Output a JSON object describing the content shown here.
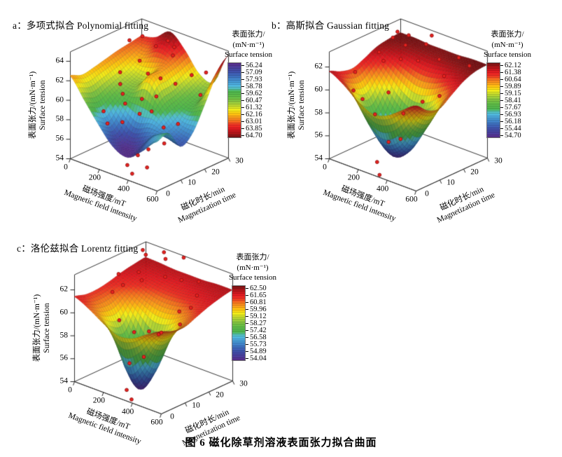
{
  "figure": {
    "caption": "图 6  磁化除草剂溶液表面张力拟合曲面"
  },
  "axes_common": {
    "x_label_cn": "磁场强度/mT",
    "x_label_en": "Magnetic field intensity",
    "y_label_cn": "磁化时长/min",
    "y_label_en": "Magnetization time",
    "z_label_cn": "表面张力/(mN·m⁻¹)",
    "z_label_en": "Surface tension",
    "x_ticks": [
      0,
      200,
      400,
      600
    ],
    "y_ticks": [
      0,
      10,
      20,
      30
    ]
  },
  "colorbar_title_lines": [
    "表面张力/",
    "(mN·m⁻¹)",
    "Surface tension"
  ],
  "scatter_color": "#e8231f",
  "scatter_edge": "#8c1012",
  "frame_color": "#333333",
  "colormap": [
    {
      "f": 0.0,
      "c": "#5b2c8c"
    },
    {
      "f": 0.06,
      "c": "#4a3f9c"
    },
    {
      "f": 0.12,
      "c": "#3f51ab"
    },
    {
      "f": 0.18,
      "c": "#3e6fbe"
    },
    {
      "f": 0.24,
      "c": "#4391cf"
    },
    {
      "f": 0.3,
      "c": "#4fb4e0"
    },
    {
      "f": 0.34,
      "c": "#53c0c2"
    },
    {
      "f": 0.38,
      "c": "#4cb64e"
    },
    {
      "f": 0.46,
      "c": "#63bc46"
    },
    {
      "f": 0.52,
      "c": "#8cc63f"
    },
    {
      "f": 0.58,
      "c": "#c3da2e"
    },
    {
      "f": 0.63,
      "c": "#f3ec19"
    },
    {
      "f": 0.68,
      "c": "#fdc70f"
    },
    {
      "f": 0.73,
      "c": "#fa9c1b"
    },
    {
      "f": 0.78,
      "c": "#f4711f"
    },
    {
      "f": 0.83,
      "c": "#ee3124"
    },
    {
      "f": 0.88,
      "c": "#e31b22"
    },
    {
      "f": 0.93,
      "c": "#bb141a"
    },
    {
      "f": 0.97,
      "c": "#951517"
    },
    {
      "f": 1.0,
      "c": "#731012"
    }
  ],
  "panels": [
    {
      "id": "a",
      "title": "a：多项式拟合 Polynomial fitting",
      "z_ticks": [
        54,
        56,
        58,
        60,
        62,
        64
      ],
      "z_axis_min": 54,
      "z_axis_max": 65,
      "colorbar_labels": [
        "56.24",
        "57.09",
        "57.93",
        "58.78",
        "59.62",
        "60.47",
        "61.32",
        "62.16",
        "63.01",
        "63.85",
        "64.70"
      ],
      "colorbar_low_at_top": true
    },
    {
      "id": "b",
      "title": "b：高斯拟合 Gaussian fitting",
      "z_ticks": [
        54,
        56,
        58,
        60,
        62
      ],
      "z_axis_min": 54,
      "z_axis_max": 63.35,
      "colorbar_labels": [
        "62.12",
        "61.38",
        "60.64",
        "59.89",
        "59.15",
        "58.41",
        "57.67",
        "56.93",
        "56.18",
        "55.44",
        "54.70"
      ],
      "colorbar_low_at_top": false
    },
    {
      "id": "c",
      "title": "c：洛伦兹拟合 Lorentz fitting",
      "z_ticks": [
        54,
        56,
        58,
        60,
        62
      ],
      "z_axis_min": 54,
      "z_axis_max": 63.35,
      "colorbar_labels": [
        "62.50",
        "61.65",
        "60.81",
        "59.96",
        "59.12",
        "58.27",
        "57.42",
        "56.58",
        "55.73",
        "54.89",
        "54.04"
      ],
      "colorbar_low_at_top": false
    }
  ],
  "chart_data": [
    {
      "type": "surface3d",
      "name": "Polynomial fitting",
      "grid_order": "rows = y (magnetization time), cols = x (magnetic field)",
      "x_values": [
        0,
        100,
        200,
        300,
        400,
        500,
        600
      ],
      "y_values": [
        0,
        5,
        10,
        15,
        20,
        25,
        30
      ],
      "z_grid": [
        [
          62.5,
          60.5,
          58.5,
          56.8,
          56.3,
          57.5,
          59.0
        ],
        [
          62.0,
          60.0,
          57.8,
          56.5,
          56.9,
          58.5,
          59.3
        ],
        [
          62.2,
          60.5,
          59.2,
          58.2,
          58.6,
          58.0,
          57.4
        ],
        [
          62.5,
          61.0,
          60.6,
          62.0,
          60.0,
          58.5,
          58.2
        ],
        [
          62.8,
          61.5,
          61.2,
          62.4,
          60.4,
          59.6,
          60.5
        ],
        [
          63.0,
          62.5,
          63.4,
          62.8,
          61.0,
          60.2,
          63.0
        ],
        [
          63.2,
          63.6,
          64.7,
          63.4,
          61.5,
          61.2,
          64.5
        ]
      ],
      "clim": [
        56.24,
        64.7
      ],
      "scatter_points": [
        [
          0,
          25,
          63.3
        ],
        [
          40,
          28,
          63.6
        ],
        [
          120,
          22,
          62.2
        ],
        [
          150,
          27,
          63.3
        ],
        [
          200,
          29,
          63.9
        ],
        [
          210,
          20,
          61.6
        ],
        [
          260,
          28,
          63.7
        ],
        [
          300,
          25,
          63.4
        ],
        [
          330,
          18,
          62.0
        ],
        [
          100,
          15,
          61.7
        ],
        [
          150,
          12,
          61.1
        ],
        [
          200,
          10,
          60.6
        ],
        [
          250,
          8,
          60.1
        ],
        [
          300,
          12,
          60.4
        ],
        [
          350,
          15,
          60.6
        ],
        [
          400,
          20,
          61.6
        ],
        [
          430,
          25,
          62.1
        ],
        [
          480,
          28,
          62.3
        ],
        [
          150,
          5,
          59.1
        ],
        [
          210,
          3,
          58.4
        ],
        [
          280,
          5,
          58.7
        ],
        [
          350,
          8,
          59.6
        ],
        [
          400,
          10,
          59.9
        ],
        [
          450,
          12,
          58.3
        ],
        [
          500,
          15,
          58.6
        ],
        [
          540,
          22,
          61.0
        ],
        [
          420,
          3,
          56.3
        ],
        [
          460,
          5,
          56.9
        ],
        [
          380,
          1,
          55.3
        ],
        [
          430,
          0,
          54.8
        ],
        [
          500,
          2,
          55.6
        ],
        [
          520,
          8,
          57.5
        ]
      ]
    },
    {
      "type": "surface3d",
      "name": "Gaussian fitting",
      "grid_order": "rows = y (magnetization time), cols = x (magnetic field)",
      "x_values": [
        0,
        100,
        200,
        300,
        400,
        500,
        600
      ],
      "y_values": [
        0,
        5,
        10,
        15,
        20,
        25,
        30
      ],
      "z_grid": [
        [
          61.6,
          60.9,
          59.9,
          59.3,
          59.6,
          60.5,
          61.4
        ],
        [
          61.1,
          59.5,
          57.3,
          56.0,
          56.6,
          58.6,
          60.5
        ],
        [
          60.9,
          58.9,
          56.4,
          54.8,
          55.6,
          57.9,
          60.2
        ],
        [
          61.3,
          60.0,
          58.3,
          57.3,
          57.8,
          59.3,
          60.9
        ],
        [
          61.8,
          61.3,
          60.7,
          60.3,
          60.5,
          61.1,
          61.6
        ],
        [
          62.0,
          61.9,
          61.8,
          61.7,
          61.8,
          61.9,
          62.0
        ],
        [
          62.1,
          62.1,
          62.0,
          62.0,
          62.0,
          62.1,
          62.1
        ]
      ],
      "clim": [
        54.7,
        62.12
      ],
      "scatter_points": [
        [
          30,
          27,
          62.6
        ],
        [
          80,
          22,
          62.8
        ],
        [
          140,
          25,
          63.0
        ],
        [
          200,
          20,
          62.9
        ],
        [
          250,
          28,
          63.2
        ],
        [
          310,
          22,
          63.3
        ],
        [
          100,
          15,
          62.3
        ],
        [
          180,
          12,
          62.2
        ],
        [
          250,
          15,
          62.4
        ],
        [
          320,
          18,
          62.3
        ],
        [
          400,
          22,
          62.4
        ],
        [
          470,
          26,
          62.5
        ],
        [
          280,
          8,
          60.3
        ],
        [
          150,
          5,
          59.4
        ],
        [
          220,
          6,
          58.3
        ],
        [
          350,
          10,
          58.6
        ],
        [
          330,
          5,
          56.5
        ],
        [
          380,
          7,
          56.8
        ],
        [
          300,
          2,
          54.9
        ],
        [
          350,
          0,
          54.2
        ],
        [
          450,
          12,
          59.9
        ],
        [
          500,
          18,
          61.8
        ],
        [
          560,
          25,
          62.3
        ],
        [
          50,
          8,
          61.0
        ],
        [
          120,
          3,
          60.2
        ],
        [
          600,
          10,
          61.3
        ]
      ]
    },
    {
      "type": "surface3d",
      "name": "Lorentz fitting",
      "grid_order": "rows = y (magnetization time), cols = x (magnetic field)",
      "x_values": [
        0,
        100,
        200,
        300,
        400,
        500,
        600
      ],
      "y_values": [
        0,
        5,
        10,
        15,
        20,
        25,
        30
      ],
      "z_grid": [
        [
          61.4,
          60.8,
          60.0,
          59.4,
          59.6,
          60.4,
          61.1
        ],
        [
          61.1,
          60.2,
          58.3,
          55.4,
          56.7,
          59.2,
          60.7
        ],
        [
          61.1,
          60.1,
          57.6,
          54.1,
          55.8,
          59.1,
          60.6
        ],
        [
          61.3,
          60.7,
          59.7,
          58.8,
          59.1,
          60.2,
          61.0
        ],
        [
          61.6,
          61.3,
          60.9,
          60.7,
          60.8,
          61.1,
          61.4
        ],
        [
          61.8,
          61.6,
          61.5,
          61.4,
          61.5,
          61.6,
          61.7
        ],
        [
          61.95,
          61.9,
          61.8,
          61.8,
          61.8,
          61.9,
          61.9
        ]
      ],
      "clim": [
        54.04,
        62.5
      ],
      "scatter_points": [
        [
          30,
          27,
          63.0
        ],
        [
          100,
          24,
          63.2
        ],
        [
          160,
          28,
          63.4
        ],
        [
          220,
          25,
          63.3
        ],
        [
          280,
          29,
          63.4
        ],
        [
          150,
          18,
          62.5
        ],
        [
          220,
          15,
          62.4
        ],
        [
          300,
          20,
          62.6
        ],
        [
          380,
          22,
          62.5
        ],
        [
          450,
          25,
          62.4
        ],
        [
          520,
          20,
          62.0
        ],
        [
          560,
          15,
          61.6
        ],
        [
          100,
          10,
          61.3
        ],
        [
          180,
          8,
          59.4
        ],
        [
          250,
          10,
          58.5
        ],
        [
          320,
          12,
          58.7
        ],
        [
          350,
          8,
          57.0
        ],
        [
          300,
          5,
          56.5
        ],
        [
          330,
          2,
          54.6
        ],
        [
          380,
          1,
          54.1
        ],
        [
          420,
          10,
          59.1
        ],
        [
          480,
          15,
          60.9
        ],
        [
          60,
          15,
          62.2
        ],
        [
          140,
          12,
          61.9
        ],
        [
          600,
          8,
          61.0
        ],
        [
          520,
          5,
          60.2
        ]
      ]
    }
  ]
}
